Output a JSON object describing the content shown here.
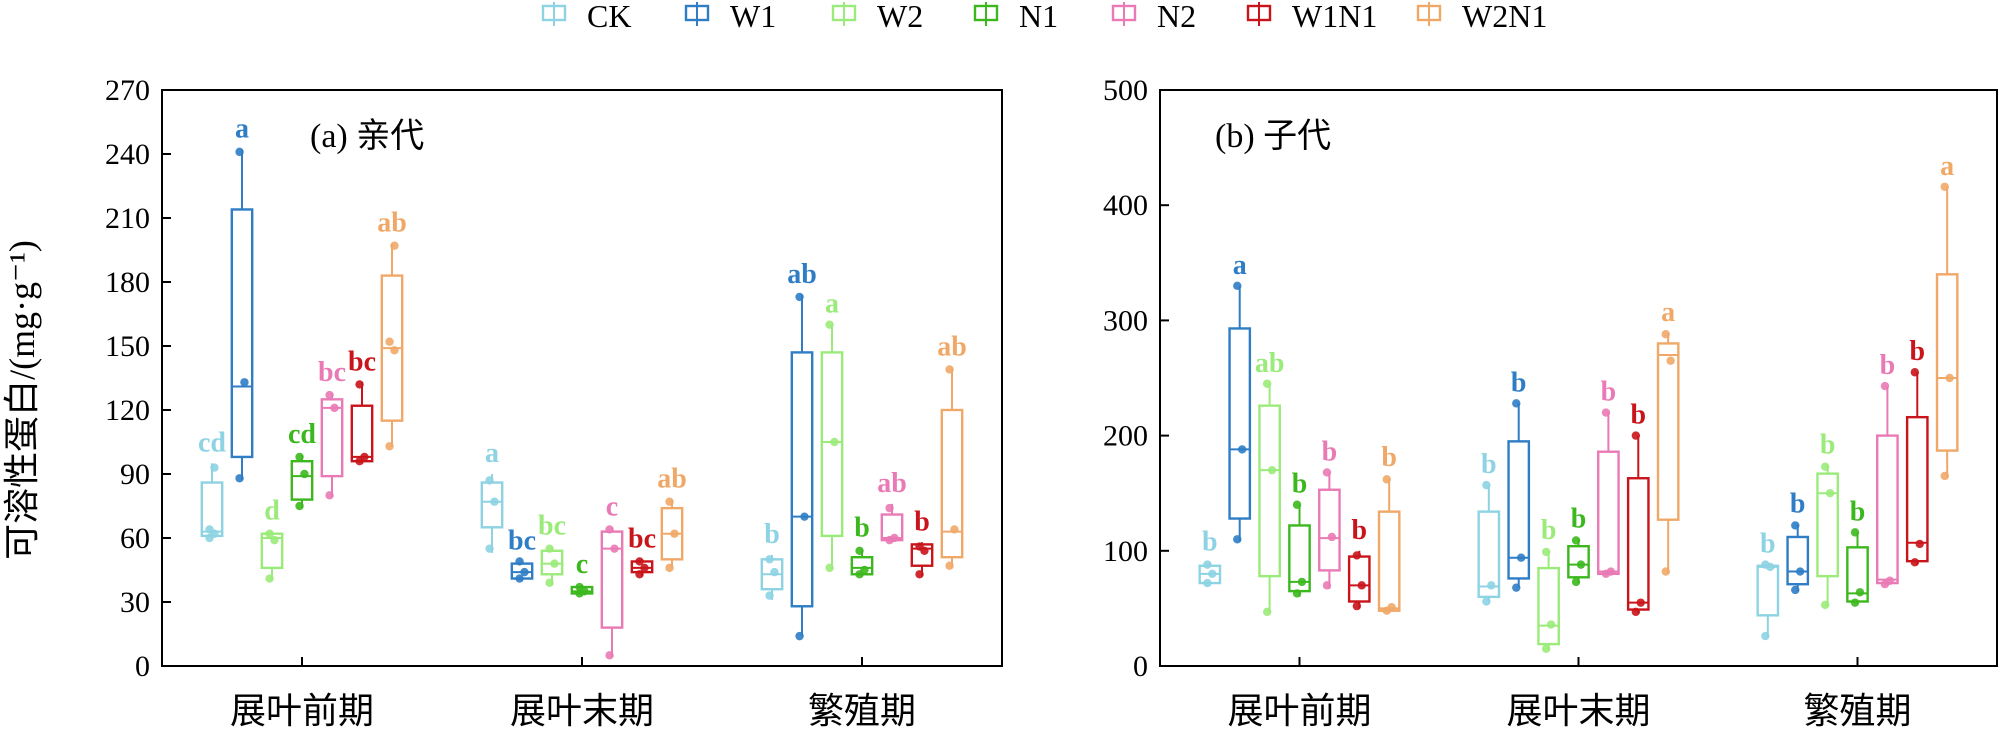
{
  "figure": {
    "ylabel": "可溶性蛋白/(mg·g⁻¹)",
    "legend": [
      {
        "name": "CK",
        "color": "#8dd3e3"
      },
      {
        "name": "W1",
        "color": "#2e7dc5"
      },
      {
        "name": "W2",
        "color": "#9beb7a"
      },
      {
        "name": "N1",
        "color": "#3cb81e"
      },
      {
        "name": "N2",
        "color": "#ea7ab5"
      },
      {
        "name": "W1N1",
        "color": "#c9141b"
      },
      {
        "name": "W2N1",
        "color": "#f0a868"
      }
    ]
  },
  "chart_data": [
    {
      "type": "box",
      "title": "(a) 亲代",
      "categories": [
        "展叶前期",
        "展叶末期",
        "繁殖期"
      ],
      "ylim": [
        0,
        270
      ],
      "yticks": [
        0,
        30,
        60,
        90,
        120,
        150,
        180,
        210,
        240,
        270
      ],
      "groups": [
        {
          "category": "展叶前期",
          "boxes": [
            {
              "series": "CK",
              "min": 60,
              "q1": 61,
              "median": 63,
              "q3": 86,
              "max": 95,
              "points": [
                60,
                62,
                64,
                93
              ],
              "letter": "cd"
            },
            {
              "series": "W1",
              "min": 87,
              "q1": 98,
              "median": 131,
              "q3": 214,
              "max": 242,
              "points": [
                88,
                133,
                241
              ],
              "letter": "a"
            },
            {
              "series": "W2",
              "min": 40,
              "q1": 46,
              "median": 60,
              "q3": 62,
              "max": 63,
              "points": [
                41,
                59,
                62
              ],
              "letter": "d"
            },
            {
              "series": "N1",
              "min": 74,
              "q1": 78,
              "median": 89,
              "q3": 96,
              "max": 99,
              "points": [
                75,
                90,
                98
              ],
              "letter": "cd"
            },
            {
              "series": "N2",
              "min": 79,
              "q1": 89,
              "median": 121,
              "q3": 125,
              "max": 128,
              "points": [
                80,
                121,
                127
              ],
              "letter": "bc"
            },
            {
              "series": "W1N1",
              "min": 95,
              "q1": 96,
              "median": 98,
              "q3": 122,
              "max": 133,
              "points": [
                96,
                98,
                132
              ],
              "letter": "bc"
            },
            {
              "series": "W2N1",
              "min": 103,
              "q1": 115,
              "median": 149,
              "q3": 183,
              "max": 198,
              "points": [
                103,
                148,
                152,
                197
              ],
              "letter": "ab"
            }
          ]
        },
        {
          "category": "展叶末期",
          "boxes": [
            {
              "series": "CK",
              "min": 53,
              "q1": 65,
              "median": 77,
              "q3": 86,
              "max": 90,
              "points": [
                55,
                77,
                87
              ],
              "letter": "a"
            },
            {
              "series": "W1",
              "min": 40,
              "q1": 41,
              "median": 44,
              "q3": 48,
              "max": 49,
              "points": [
                41,
                44,
                49
              ],
              "letter": "bc"
            },
            {
              "series": "W2",
              "min": 38,
              "q1": 43,
              "median": 48,
              "q3": 54,
              "max": 56,
              "points": [
                39,
                48,
                55
              ],
              "letter": "bc"
            },
            {
              "series": "N1",
              "min": 33,
              "q1": 34,
              "median": 35,
              "q3": 37,
              "max": 38,
              "points": [
                34,
                35,
                37
              ],
              "letter": "c"
            },
            {
              "series": "N2",
              "min": 4,
              "q1": 18,
              "median": 55,
              "q3": 63,
              "max": 65,
              "points": [
                5,
                55,
                64
              ],
              "letter": "c"
            },
            {
              "series": "W1N1",
              "min": 42,
              "q1": 44,
              "median": 46,
              "q3": 49,
              "max": 50,
              "points": [
                43,
                46,
                49
              ],
              "letter": "bc"
            },
            {
              "series": "W2N1",
              "min": 46,
              "q1": 50,
              "median": 62,
              "q3": 74,
              "max": 78,
              "points": [
                46,
                62,
                77
              ],
              "letter": "ab"
            }
          ]
        },
        {
          "category": "繁殖期",
          "boxes": [
            {
              "series": "CK",
              "min": 31,
              "q1": 36,
              "median": 43,
              "q3": 50,
              "max": 52,
              "points": [
                33,
                44,
                50
              ],
              "letter": "b"
            },
            {
              "series": "W1",
              "min": 14,
              "q1": 28,
              "median": 70,
              "q3": 147,
              "max": 174,
              "points": [
                14,
                70,
                173
              ],
              "letter": "ab"
            },
            {
              "series": "W2",
              "min": 45,
              "q1": 61,
              "median": 105,
              "q3": 147,
              "max": 160,
              "points": [
                46,
                105,
                160
              ],
              "letter": "a"
            },
            {
              "series": "N1",
              "min": 42,
              "q1": 43,
              "median": 46,
              "q3": 51,
              "max": 55,
              "points": [
                43,
                45,
                54
              ],
              "letter": "b"
            },
            {
              "series": "N2",
              "min": 58,
              "q1": 59,
              "median": 60,
              "q3": 71,
              "max": 76,
              "points": [
                59,
                60,
                74
              ],
              "letter": "ab"
            },
            {
              "series": "W1N1",
              "min": 42,
              "q1": 47,
              "median": 55,
              "q3": 57,
              "max": 58,
              "points": [
                43,
                54,
                56
              ],
              "letter": "b"
            },
            {
              "series": "W2N1",
              "min": 46,
              "q1": 51,
              "median": 63,
              "q3": 120,
              "max": 140,
              "points": [
                47,
                64,
                139
              ],
              "letter": "ab"
            }
          ]
        }
      ]
    },
    {
      "type": "box",
      "title": "(b) 子代",
      "categories": [
        "展叶前期",
        "展叶末期",
        "繁殖期"
      ],
      "ylim": [
        0,
        500
      ],
      "yticks": [
        0,
        100,
        200,
        300,
        400,
        500
      ],
      "groups": [
        {
          "category": "展叶前期",
          "boxes": [
            {
              "series": "CK",
              "min": 70,
              "q1": 72,
              "median": 80,
              "q3": 87,
              "max": 90,
              "points": [
                72,
                80,
                88
              ],
              "letter": "b"
            },
            {
              "series": "W1",
              "min": 108,
              "q1": 128,
              "median": 188,
              "q3": 293,
              "max": 330,
              "points": [
                110,
                188,
                330
              ],
              "letter": "a"
            },
            {
              "series": "W2",
              "min": 46,
              "q1": 78,
              "median": 170,
              "q3": 226,
              "max": 245,
              "points": [
                47,
                170,
                245
              ],
              "letter": "ab"
            },
            {
              "series": "N1",
              "min": 60,
              "q1": 65,
              "median": 73,
              "q3": 122,
              "max": 140,
              "points": [
                63,
                73,
                140
              ],
              "letter": "b"
            },
            {
              "series": "N2",
              "min": 67,
              "q1": 83,
              "median": 111,
              "q3": 153,
              "max": 168,
              "points": [
                70,
                112,
                168
              ],
              "letter": "b"
            },
            {
              "series": "W1N1",
              "min": 50,
              "q1": 56,
              "median": 70,
              "q3": 95,
              "max": 100,
              "points": [
                52,
                70,
                96
              ],
              "letter": "b"
            },
            {
              "series": "W2N1",
              "min": 47,
              "q1": 48,
              "median": 50,
              "q3": 134,
              "max": 163,
              "points": [
                48,
                51,
                162
              ],
              "letter": "b"
            }
          ]
        },
        {
          "category": "展叶末期",
          "boxes": [
            {
              "series": "CK",
              "min": 55,
              "q1": 60,
              "median": 69,
              "q3": 134,
              "max": 157,
              "points": [
                56,
                70,
                157
              ],
              "letter": "b"
            },
            {
              "series": "W1",
              "min": 68,
              "q1": 76,
              "median": 94,
              "q3": 195,
              "max": 228,
              "points": [
                68,
                94,
                228
              ],
              "letter": "b"
            },
            {
              "series": "W2",
              "min": 14,
              "q1": 19,
              "median": 35,
              "q3": 85,
              "max": 100,
              "points": [
                15,
                36,
                99
              ],
              "letter": "b"
            },
            {
              "series": "N1",
              "min": 72,
              "q1": 77,
              "median": 88,
              "q3": 104,
              "max": 110,
              "points": [
                73,
                88,
                109
              ],
              "letter": "b"
            },
            {
              "series": "N2",
              "min": 79,
              "q1": 80,
              "median": 82,
              "q3": 186,
              "max": 220,
              "points": [
                80,
                82,
                220
              ],
              "letter": "b"
            },
            {
              "series": "W1N1",
              "min": 46,
              "q1": 49,
              "median": 55,
              "q3": 163,
              "max": 200,
              "points": [
                47,
                55,
                200
              ],
              "letter": "b"
            },
            {
              "series": "W2N1",
              "min": 80,
              "q1": 127,
              "median": 270,
              "q3": 280,
              "max": 289,
              "points": [
                82,
                265,
                288
              ],
              "letter": "a"
            }
          ]
        },
        {
          "category": "繁殖期",
          "boxes": [
            {
              "series": "CK",
              "min": 25,
              "q1": 44,
              "median": 86,
              "q3": 87,
              "max": 88,
              "points": [
                26,
                86,
                88
              ],
              "letter": "b"
            },
            {
              "series": "W1",
              "min": 65,
              "q1": 71,
              "median": 82,
              "q3": 112,
              "max": 123,
              "points": [
                66,
                82,
                122
              ],
              "letter": "b"
            },
            {
              "series": "W2",
              "min": 52,
              "q1": 78,
              "median": 150,
              "q3": 167,
              "max": 174,
              "points": [
                53,
                150,
                173
              ],
              "letter": "b"
            },
            {
              "series": "N1",
              "min": 54,
              "q1": 56,
              "median": 63,
              "q3": 103,
              "max": 116,
              "points": [
                55,
                64,
                116
              ],
              "letter": "b"
            },
            {
              "series": "N2",
              "min": 70,
              "q1": 72,
              "median": 75,
              "q3": 200,
              "max": 243,
              "points": [
                71,
                74,
                243
              ],
              "letter": "b"
            },
            {
              "series": "W1N1",
              "min": 88,
              "q1": 91,
              "median": 107,
              "q3": 216,
              "max": 255,
              "points": [
                90,
                106,
                255
              ],
              "letter": "b"
            },
            {
              "series": "W2N1",
              "min": 163,
              "q1": 187,
              "median": 250,
              "q3": 340,
              "max": 416,
              "points": [
                165,
                250,
                416
              ],
              "letter": "a"
            }
          ]
        }
      ]
    }
  ]
}
